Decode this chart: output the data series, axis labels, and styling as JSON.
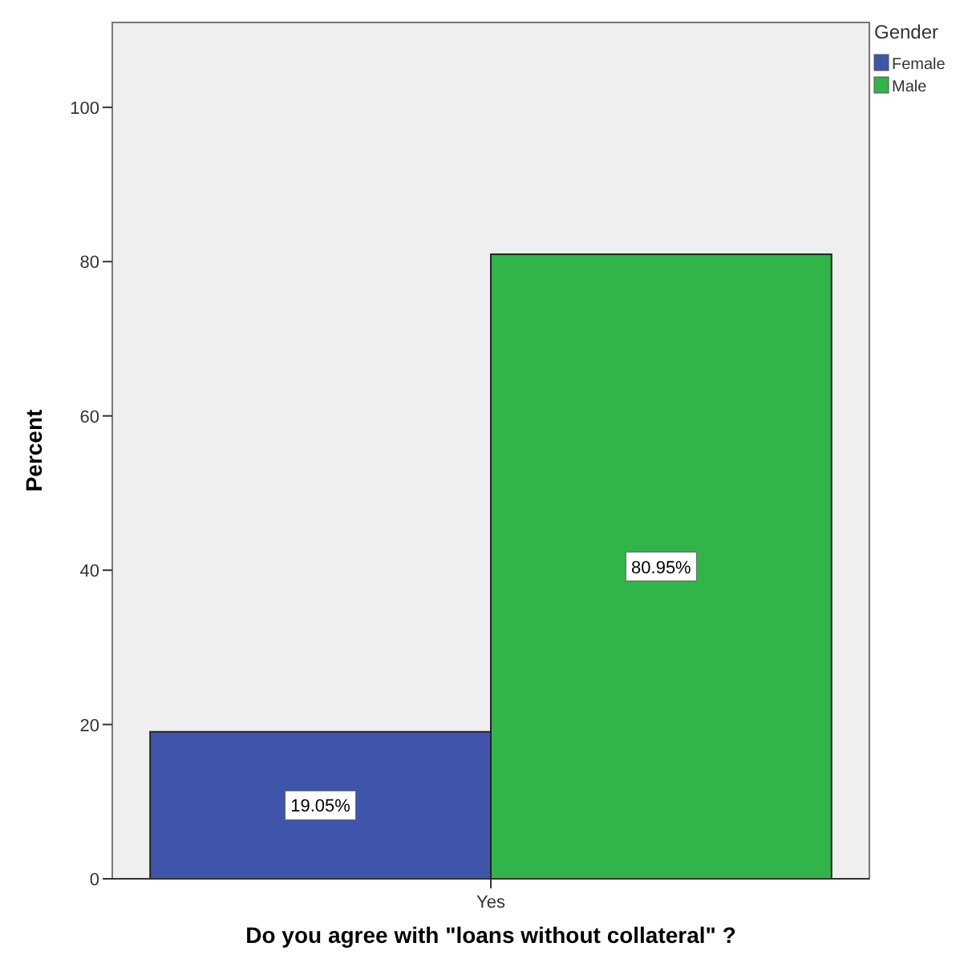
{
  "chart_data": {
    "type": "bar",
    "xlabel": "Do you agree with \"loans without collateral\" ?",
    "ylabel": "Percent",
    "legend_title": "Gender",
    "categories": [
      "Yes"
    ],
    "series": [
      {
        "name": "Female",
        "color": "#3f55a9",
        "values": [
          19.05
        ],
        "value_labels": [
          "19.05%"
        ]
      },
      {
        "name": "Male",
        "color": "#31b44a",
        "values": [
          80.95
        ],
        "value_labels": [
          "80.95%"
        ]
      }
    ],
    "ylim": [
      0,
      111
    ],
    "yticks": [
      0,
      20,
      40,
      60,
      80,
      100
    ],
    "legend": "top right",
    "grid": false
  }
}
